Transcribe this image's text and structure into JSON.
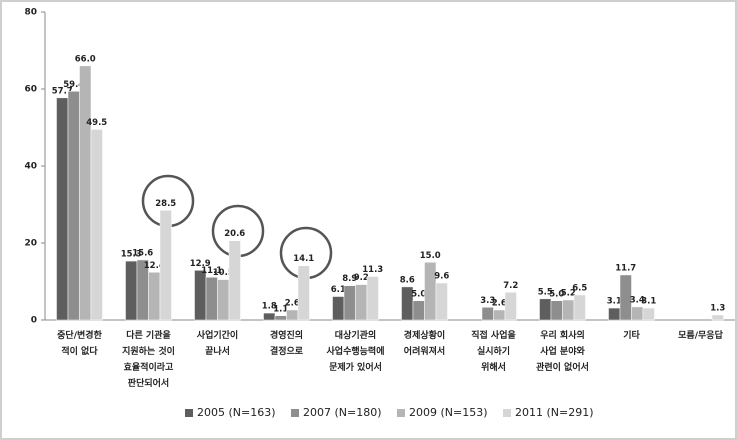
{
  "chart_data": {
    "type": "bar",
    "categories": [
      "중단/변경한\n적이 없다",
      "다른 기관을\n지원하는 것이\n효율적이라고\n판단되어서",
      "사업기간이\n끝나서",
      "경영진의\n결정으로",
      "대상기관의\n사업수행능력에\n문제가 있어서",
      "경제상황이\n어려워져서",
      "직접 사업을\n실시하기\n위해서",
      "우리 회사의\n사업 분야와\n관련이 없어서",
      "기타",
      "모름/무응답"
    ],
    "series": [
      {
        "name": "2005 (N=163)",
        "color": "#5e5e5e",
        "values": [
          57.7,
          15.3,
          12.9,
          1.8,
          6.1,
          8.6,
          null,
          5.5,
          3.1,
          null
        ],
        "value_labels": [
          "57.7",
          "15.3",
          "12.9",
          "1.8",
          "6.1",
          "8.6",
          null,
          "5.5",
          "3.1",
          null
        ]
      },
      {
        "name": "2007 (N=180)",
        "color": "#8e8e8e",
        "values": [
          59.4,
          15.6,
          11.1,
          1.1,
          8.9,
          5.0,
          3.3,
          5.0,
          11.7,
          null
        ],
        "value_labels": [
          "59.4",
          "15.6",
          "11.1",
          "1.1",
          "8.9",
          "5.0",
          "3.3",
          "5.0",
          "11.7",
          null
        ]
      },
      {
        "name": "2009 (N=153)",
        "color": "#b5b5b5",
        "values": [
          66.0,
          12.4,
          10.5,
          2.6,
          9.2,
          15.0,
          2.6,
          5.2,
          3.4,
          null
        ],
        "value_labels": [
          "66.0",
          "12.4",
          "10.5",
          "2.6",
          "9.2",
          "15.0",
          "2.6",
          "5.2",
          "3.4",
          null
        ]
      },
      {
        "name": "2011 (N=291)",
        "color": "#d6d6d6",
        "values": [
          49.5,
          28.5,
          20.6,
          14.1,
          11.3,
          9.6,
          7.2,
          6.5,
          3.1,
          1.3
        ],
        "value_labels": [
          "49.5",
          "28.5",
          "20.6",
          "14.1",
          "11.3",
          "9.6",
          "7.2",
          "6.5",
          "3.1",
          "1.3"
        ]
      }
    ],
    "ylim": [
      0,
      80
    ],
    "yticks": [
      0,
      20,
      40,
      60,
      80
    ],
    "grid": false
  }
}
